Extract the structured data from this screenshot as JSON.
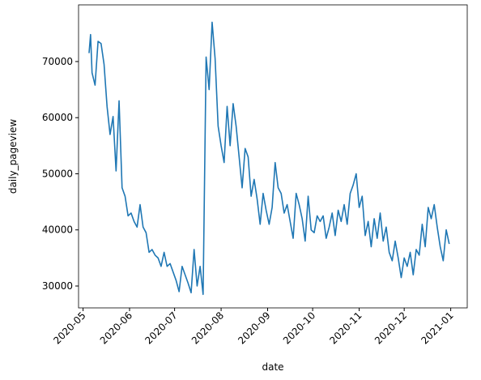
{
  "chart_data": {
    "type": "line",
    "x_label": "date",
    "y_label": "daily_pageview",
    "color": "#1f77b4",
    "x": [
      "2020-05-05",
      "2020-05-06",
      "2020-05-07",
      "2020-05-09",
      "2020-05-11",
      "2020-05-13",
      "2020-05-15",
      "2020-05-17",
      "2020-05-19",
      "2020-05-21",
      "2020-05-23",
      "2020-05-25",
      "2020-05-27",
      "2020-05-29",
      "2020-05-31",
      "2020-06-02",
      "2020-06-04",
      "2020-06-06",
      "2020-06-08",
      "2020-06-10",
      "2020-06-12",
      "2020-06-14",
      "2020-06-16",
      "2020-06-18",
      "2020-06-20",
      "2020-06-22",
      "2020-06-24",
      "2020-06-26",
      "2020-06-28",
      "2020-06-30",
      "2020-07-02",
      "2020-07-04",
      "2020-07-06",
      "2020-07-08",
      "2020-07-10",
      "2020-07-12",
      "2020-07-14",
      "2020-07-16",
      "2020-07-18",
      "2020-07-20",
      "2020-07-22",
      "2020-07-24",
      "2020-07-26",
      "2020-07-28",
      "2020-07-30",
      "2020-08-01",
      "2020-08-03",
      "2020-08-05",
      "2020-08-07",
      "2020-08-09",
      "2020-08-11",
      "2020-08-13",
      "2020-08-15",
      "2020-08-17",
      "2020-08-19",
      "2020-08-21",
      "2020-08-23",
      "2020-08-25",
      "2020-08-27",
      "2020-08-29",
      "2020-08-31",
      "2020-09-02",
      "2020-09-04",
      "2020-09-06",
      "2020-09-08",
      "2020-09-10",
      "2020-09-12",
      "2020-09-14",
      "2020-09-16",
      "2020-09-18",
      "2020-09-20",
      "2020-09-22",
      "2020-09-24",
      "2020-09-26",
      "2020-09-28",
      "2020-09-30",
      "2020-10-02",
      "2020-10-04",
      "2020-10-06",
      "2020-10-08",
      "2020-10-10",
      "2020-10-12",
      "2020-10-14",
      "2020-10-16",
      "2020-10-18",
      "2020-10-20",
      "2020-10-22",
      "2020-10-24",
      "2020-10-26",
      "2020-10-28",
      "2020-10-30",
      "2020-11-01",
      "2020-11-03",
      "2020-11-05",
      "2020-11-07",
      "2020-11-09",
      "2020-11-11",
      "2020-11-13",
      "2020-11-15",
      "2020-11-17",
      "2020-11-19",
      "2020-11-21",
      "2020-11-23",
      "2020-11-25",
      "2020-11-27",
      "2020-11-29",
      "2020-12-01",
      "2020-12-03",
      "2020-12-05",
      "2020-12-07",
      "2020-12-09",
      "2020-12-11",
      "2020-12-13",
      "2020-12-15",
      "2020-12-17",
      "2020-12-19",
      "2020-12-21",
      "2020-12-23",
      "2020-12-25",
      "2020-12-27",
      "2020-12-29",
      "2020-12-31"
    ],
    "values": [
      71500,
      74800,
      68000,
      65800,
      73600,
      73200,
      69500,
      62000,
      57000,
      60200,
      50500,
      63000,
      47500,
      46000,
      42500,
      43000,
      41500,
      40500,
      44500,
      40500,
      39500,
      36000,
      36500,
      35500,
      35000,
      33500,
      36000,
      33500,
      34000,
      32500,
      31000,
      29000,
      33500,
      32000,
      30500,
      28800,
      36500,
      30000,
      33500,
      28500,
      70800,
      65000,
      77000,
      70500,
      58500,
      55000,
      52000,
      62000,
      55000,
      62500,
      58500,
      53000,
      47500,
      54500,
      53000,
      46000,
      49000,
      45500,
      41000,
      46500,
      43500,
      41000,
      44000,
      52000,
      47500,
      46500,
      43000,
      44500,
      41500,
      38500,
      46500,
      44500,
      42000,
      38000,
      46000,
      40000,
      39500,
      42500,
      41500,
      42500,
      38500,
      40500,
      43000,
      39000,
      43500,
      41500,
      44500,
      41000,
      46500,
      48000,
      50000,
      44000,
      46000,
      39000,
      41500,
      37000,
      42000,
      38500,
      43000,
      38000,
      40500,
      36000,
      34500,
      38000,
      35000,
      31500,
      35000,
      33500,
      36000,
      32000,
      36500,
      35500,
      41000,
      37000,
      44000,
      42000,
      44500,
      40500,
      37000,
      34500,
      40000,
      37500
    ],
    "xlim": [
      "2020-04-28",
      "2021-01-12"
    ],
    "xticks": [
      {
        "value": "2020-05-01",
        "label": "2020-05"
      },
      {
        "value": "2020-06-01",
        "label": "2020-06"
      },
      {
        "value": "2020-07-01",
        "label": "2020-07"
      },
      {
        "value": "2020-08-01",
        "label": "2020-08"
      },
      {
        "value": "2020-09-01",
        "label": "2020-09"
      },
      {
        "value": "2020-10-01",
        "label": "2020-10"
      },
      {
        "value": "2020-11-01",
        "label": "2020-11"
      },
      {
        "value": "2020-12-01",
        "label": "2020-12"
      },
      {
        "value": "2021-01-01",
        "label": "2021-01"
      }
    ],
    "ylim": [
      26100,
      80100
    ],
    "yticks": [
      30000,
      40000,
      50000,
      60000,
      70000
    ]
  }
}
